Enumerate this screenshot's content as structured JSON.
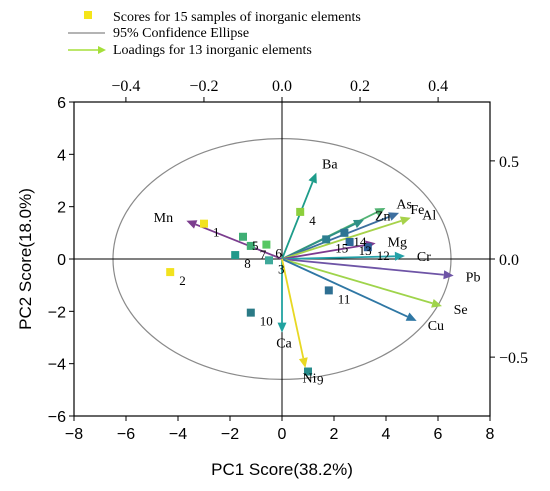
{
  "chart_data": {
    "type": "scatter",
    "title": "",
    "xlabel": "PC1 Score(38.2%)",
    "ylabel": "PC2 Score(18.0%)",
    "xlim": [
      -8,
      8
    ],
    "ylim": [
      -6,
      6
    ],
    "x_ticks": [
      "−8",
      "−6",
      "−4",
      "−2",
      "0",
      "2",
      "4",
      "6",
      "8"
    ],
    "y_ticks": [
      "−6",
      "−4",
      "−2",
      "0",
      "2",
      "4",
      "6"
    ],
    "secondary_x": {
      "lim": [
        -0.533,
        0.533
      ],
      "ticks": [
        "−0.4",
        "−0.2",
        "0.0",
        "0.2",
        "0.4"
      ]
    },
    "secondary_y": {
      "lim": [
        -0.8,
        0.8
      ],
      "ticks": [
        "−0.5",
        "0.0",
        "0.5"
      ]
    },
    "grid": false,
    "legend_position": "top-left",
    "legend": {
      "scores": "Scores for 15 samples of  inorganic elements",
      "ellipse": "95% Confidence Ellipse",
      "loadings": "Loadings for 13 inorganic elements"
    },
    "ellipse": {
      "rx": 6.5,
      "ry": 4.6
    },
    "scores": [
      {
        "label": "1",
        "x": -3.0,
        "y": 1.35,
        "color": "#f2e21e"
      },
      {
        "label": "2",
        "x": -4.3,
        "y": -0.5,
        "color": "#f2e21e"
      },
      {
        "label": "3",
        "x": -0.5,
        "y": -0.05,
        "color": "#3fa99a"
      },
      {
        "label": "4",
        "x": 0.7,
        "y": 1.8,
        "color": "#8ccf3c"
      },
      {
        "label": "5",
        "x": -1.5,
        "y": 0.85,
        "color": "#3fae74"
      },
      {
        "label": "6",
        "x": -0.6,
        "y": 0.55,
        "color": "#56c763"
      },
      {
        "label": "7",
        "x": -1.2,
        "y": 0.5,
        "color": "#3fae74"
      },
      {
        "label": "8",
        "x": -1.8,
        "y": 0.15,
        "color": "#22998b"
      },
      {
        "label": "9",
        "x": 1.0,
        "y": -4.3,
        "color": "#268b8b"
      },
      {
        "label": "10",
        "x": -1.2,
        "y": -2.05,
        "color": "#2a7a86"
      },
      {
        "label": "11",
        "x": 1.8,
        "y": -1.2,
        "color": "#2e6f92"
      },
      {
        "label": "12",
        "x": 3.3,
        "y": 0.45,
        "color": "#2f5f99"
      },
      {
        "label": "13",
        "x": 2.6,
        "y": 0.65,
        "color": "#2f6a98"
      },
      {
        "label": "14",
        "x": 2.4,
        "y": 1.0,
        "color": "#2e7493"
      },
      {
        "label": "15",
        "x": 1.7,
        "y": 0.75,
        "color": "#2d7f90"
      }
    ],
    "loadings": [
      {
        "label": "Mn",
        "x": -0.245,
        "y": 0.195,
        "color": "#7b3d8e"
      },
      {
        "label": "Ba",
        "x": 0.088,
        "y": 0.44,
        "color": "#1d9c8a"
      },
      {
        "label": "As",
        "x": 0.265,
        "y": 0.26,
        "color": "#53b474"
      },
      {
        "label": "Zn",
        "x": 0.21,
        "y": 0.2,
        "color": "#2e8f86"
      },
      {
        "label": "Fe",
        "x": 0.3,
        "y": 0.235,
        "color": "#3d6fa0"
      },
      {
        "label": "Al",
        "x": 0.33,
        "y": 0.21,
        "color": "#a7d24a"
      },
      {
        "label": "Mg",
        "x": 0.24,
        "y": 0.08,
        "color": "#7d3a8f"
      },
      {
        "label": "Cr",
        "x": 0.315,
        "y": 0.015,
        "color": "#23a1a8"
      },
      {
        "label": "Pb",
        "x": 0.44,
        "y": -0.085,
        "color": "#6e54a6"
      },
      {
        "label": "Se",
        "x": 0.41,
        "y": -0.24,
        "color": "#9fd44b"
      },
      {
        "label": "Cu",
        "x": 0.345,
        "y": -0.315,
        "color": "#2f77a4"
      },
      {
        "label": "Ca",
        "x": 0.0,
        "y": -0.375,
        "color": "#21a3a0"
      },
      {
        "label": "Ni",
        "x": 0.06,
        "y": -0.555,
        "color": "#e8d823"
      }
    ]
  }
}
